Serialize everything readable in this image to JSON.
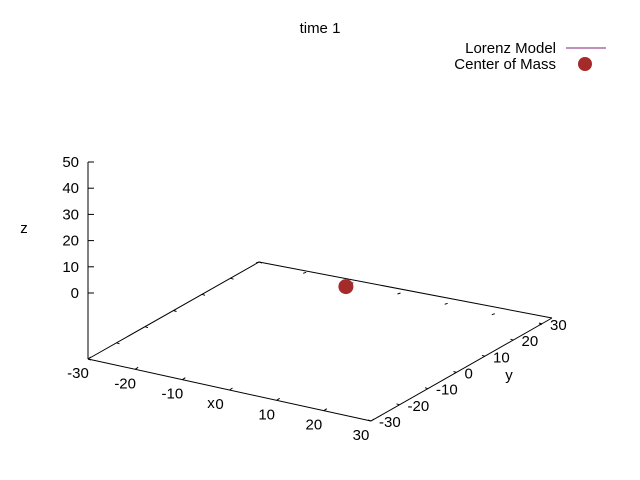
{
  "chart_data": {
    "type": "scatter",
    "title": "time 1",
    "xlabel": "x",
    "ylabel": "y",
    "zlabel": "z",
    "xlim": [
      -30,
      30
    ],
    "ylim": [
      -30,
      30
    ],
    "zlim": [
      0,
      50
    ],
    "x_ticks": [
      "-30",
      "-20",
      "-10",
      "0",
      "10",
      "20",
      "30"
    ],
    "y_ticks": [
      "-30",
      "-20",
      "-10",
      "0",
      "10",
      "20",
      "30"
    ],
    "z_ticks": [
      "0",
      "10",
      "20",
      "30",
      "40",
      "50"
    ],
    "legend_position": "top-right",
    "series": [
      {
        "name": "Lorenz Model",
        "kind": "line",
        "color": "#9b4f96",
        "points": []
      },
      {
        "name": "Center of Mass",
        "kind": "point",
        "color": "#a52a2a",
        "points": [
          {
            "x": -12,
            "y": 30,
            "z": 0
          }
        ]
      }
    ],
    "grid": false
  }
}
